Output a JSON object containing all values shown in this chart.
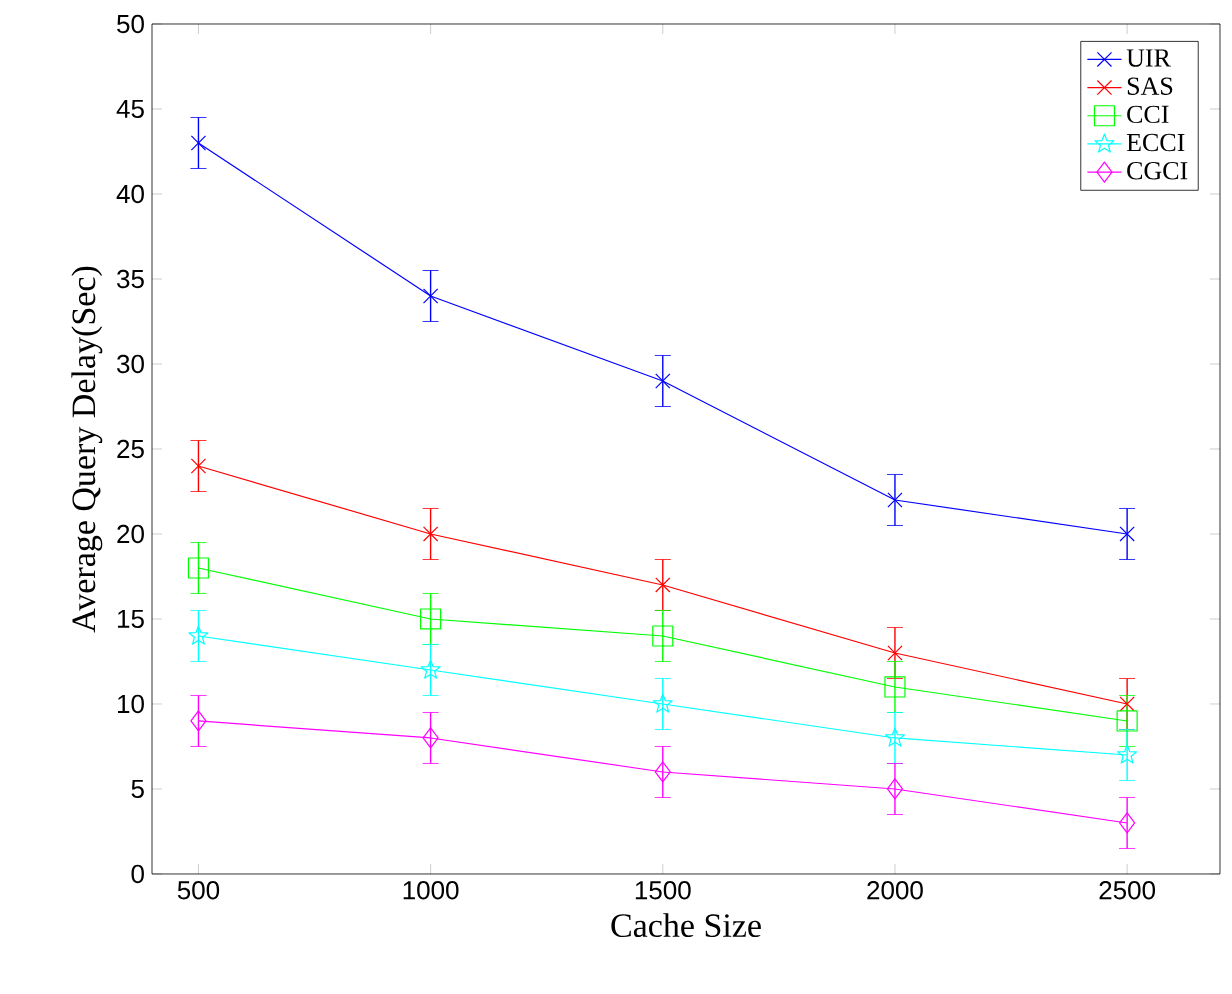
{
  "chart_data": {
    "type": "line",
    "xlabel": "Cache Size",
    "ylabel": "Average Query Delay(Sec)",
    "x": [
      500,
      1000,
      1500,
      2000,
      2500
    ],
    "xlim": [
      400,
      2700
    ],
    "xticks": [
      500,
      1000,
      1500,
      2000,
      2500
    ],
    "ylim": [
      0,
      50
    ],
    "yticks": [
      0,
      5,
      10,
      15,
      20,
      25,
      30,
      35,
      40,
      45,
      50
    ],
    "legend": "top right",
    "grid": false,
    "line_style": "solid",
    "series": [
      {
        "name": "UIR",
        "color": "#0000ff",
        "marker": "cross",
        "values": [
          43,
          34,
          29,
          22,
          20
        ],
        "errors": [
          1.5,
          1.5,
          1.5,
          1.5,
          1.5
        ]
      },
      {
        "name": "SAS",
        "color": "#ff0000",
        "marker": "cross",
        "values": [
          24,
          20,
          17,
          13,
          10
        ],
        "errors": [
          1.5,
          1.5,
          1.5,
          1.5,
          1.5
        ]
      },
      {
        "name": "CCI",
        "color": "#00ff00",
        "marker": "square",
        "values": [
          18,
          15,
          14,
          11,
          9
        ],
        "errors": [
          1.5,
          1.5,
          1.5,
          1.5,
          1.5
        ]
      },
      {
        "name": "ECCI",
        "color": "#00ffff",
        "marker": "star",
        "values": [
          14,
          12,
          10,
          8,
          7
        ],
        "errors": [
          1.5,
          1.5,
          1.5,
          1.5,
          1.5
        ]
      },
      {
        "name": "CGCI",
        "color": "#ff00ff",
        "marker": "diamond",
        "values": [
          9,
          8,
          6,
          5,
          3
        ],
        "errors": [
          1.5,
          1.5,
          1.5,
          1.5,
          1.5
        ]
      }
    ]
  }
}
